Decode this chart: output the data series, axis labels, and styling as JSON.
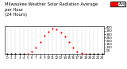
{
  "title": "Milwaukee Weather Solar Radiation Average\nper Hour\n(24 Hours)",
  "hours": [
    0,
    1,
    2,
    3,
    4,
    5,
    6,
    7,
    8,
    9,
    10,
    11,
    12,
    13,
    14,
    15,
    16,
    17,
    18,
    19,
    20,
    21,
    22,
    23
  ],
  "values": [
    0,
    0,
    0,
    0,
    0,
    2,
    30,
    90,
    175,
    270,
    340,
    380,
    370,
    320,
    260,
    185,
    100,
    40,
    8,
    1,
    0,
    0,
    0,
    0
  ],
  "ylim": [
    0,
    420
  ],
  "yticks": [
    50,
    100,
    150,
    200,
    250,
    300,
    350,
    400
  ],
  "ytick_labels": [
    "50",
    "100",
    "150",
    "200",
    "250",
    "300",
    "350",
    "400"
  ],
  "xtick_labels": [
    "0",
    "1",
    "2",
    "3",
    "4",
    "5",
    "6",
    "7",
    "8",
    "9",
    "10",
    "11",
    "12",
    "13",
    "14",
    "15",
    "16",
    "17",
    "18",
    "19",
    "20",
    "21",
    "22",
    "23"
  ],
  "dot_color": "#ff0000",
  "dot_size": 2.5,
  "grid_color": "#bbbbbb",
  "bg_color": "#ffffff",
  "legend_color": "#ff0000",
  "legend_label": " Avg",
  "title_fontsize": 3.8,
  "tick_fontsize": 3.0
}
